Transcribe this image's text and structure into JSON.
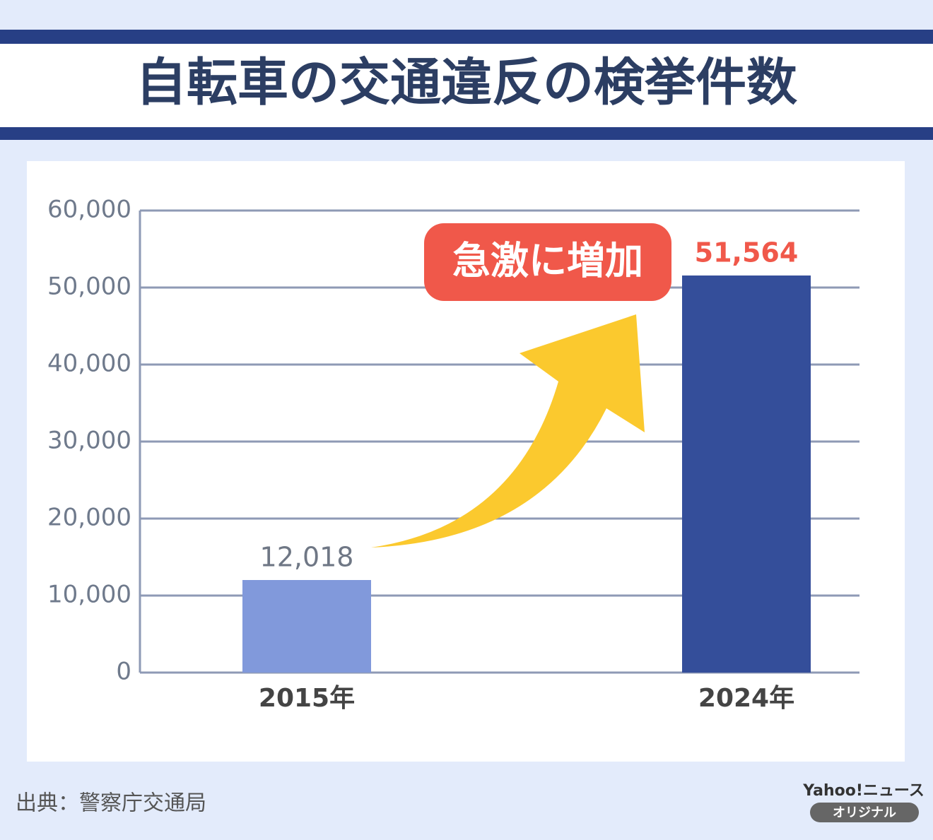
{
  "chart_data": {
    "type": "bar",
    "title": "自転車の交通違反の検挙件数",
    "categories": [
      "2015年",
      "2024年"
    ],
    "values": [
      12018,
      51564
    ],
    "value_labels": [
      "12,018",
      "51,564"
    ],
    "colors": [
      "#8199db",
      "#344e9a"
    ],
    "value_label_colors": [
      "#6f7785",
      "#f0584a"
    ],
    "ylim": [
      0,
      60000
    ],
    "yticks": [
      0,
      {
        "value": 10000,
        "label": "10,000"
      },
      {
        "value": 20000,
        "label": "20,000"
      },
      {
        "value": 30000,
        "label": "30,000"
      },
      {
        "value": 40000,
        "label": "40,000"
      },
      {
        "value": 50000,
        "label": "50,000"
      },
      {
        "value": 60000,
        "label": "60,000"
      }
    ],
    "grid": true,
    "annotation": "急激に増加",
    "source": "出典：警察庁交通局",
    "brand": "Yahoo!ニュース",
    "brand_badge": "オリジナル"
  }
}
